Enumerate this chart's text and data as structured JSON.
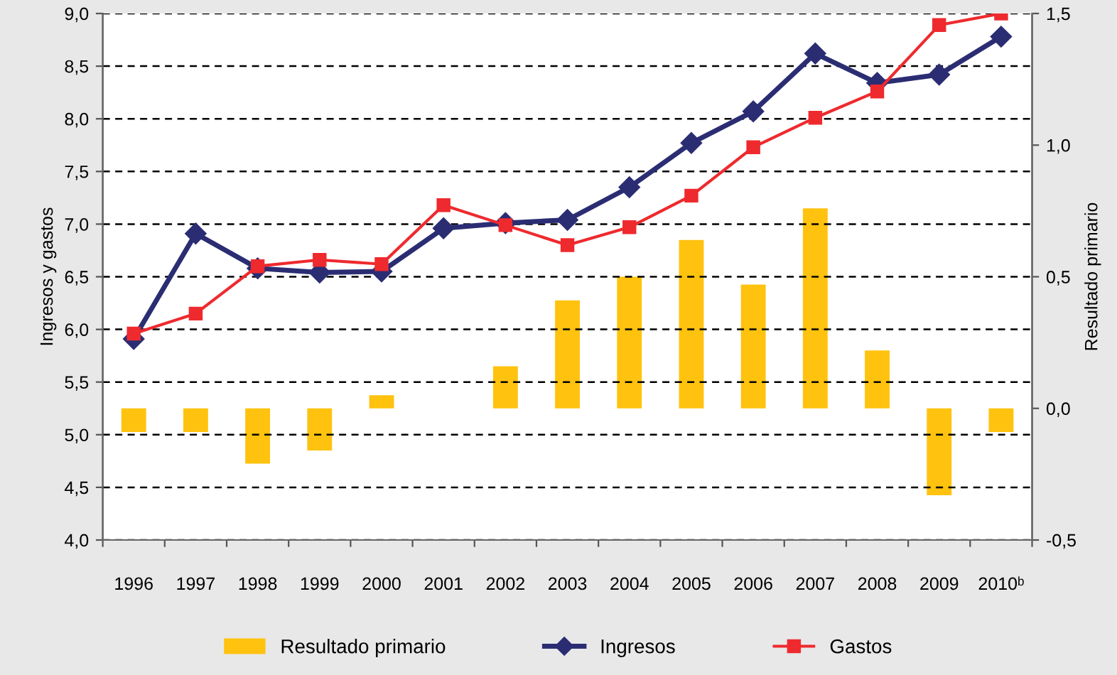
{
  "chart_data": {
    "type": "line",
    "ylabel": "Ingresos y gastos",
    "y2label": "Resultado primario",
    "categories": [
      "1996",
      "1997",
      "1998",
      "1999",
      "2000",
      "2001",
      "2002",
      "2003",
      "2004",
      "2005",
      "2006",
      "2007",
      "2008",
      "2009",
      "2010ᵇ"
    ],
    "series": [
      {
        "name": "Resultado primario",
        "type": "bar",
        "axis": "y2",
        "color": "#ffc20e",
        "values": [
          -0.09,
          -0.09,
          -0.21,
          -0.16,
          0.05,
          0,
          0.16,
          0.41,
          0.5,
          0.64,
          0.47,
          0.76,
          0.22,
          -0.33,
          -0.09
        ]
      },
      {
        "name": "Ingresos",
        "color": "#2b2d73",
        "marker": "diamond",
        "values": [
          5.91,
          6.91,
          6.58,
          6.54,
          6.55,
          6.96,
          7.01,
          7.04,
          7.35,
          7.77,
          8.07,
          8.62,
          8.34,
          8.42,
          8.78
        ]
      },
      {
        "name": "Gastos",
        "color": "#ee2a2e",
        "marker": "square",
        "values": [
          5.96,
          6.15,
          6.6,
          6.66,
          6.62,
          7.18,
          6.99,
          6.8,
          6.97,
          7.27,
          7.73,
          8.01,
          8.26,
          8.89,
          9.0
        ]
      }
    ],
    "ylim": [
      4,
      9
    ],
    "yticks": [
      {
        "value": 4,
        "label": "4,0"
      },
      {
        "value": 4.5,
        "label": "4,5"
      },
      {
        "value": 5,
        "label": "5,0"
      },
      {
        "value": 5.5,
        "label": "5,5"
      },
      {
        "value": 6,
        "label": "6,0"
      },
      {
        "value": 6.5,
        "label": "6,5"
      },
      {
        "value": 7,
        "label": "7,0"
      },
      {
        "value": 7.5,
        "label": "7,5"
      },
      {
        "value": 8,
        "label": "8,0"
      },
      {
        "value": 8.5,
        "label": "8,5"
      },
      {
        "value": 9,
        "label": "9,0"
      }
    ],
    "y2lim": [
      -0.5,
      1.5
    ],
    "y2ticks": [
      {
        "value": -0.5,
        "label": "-0,5"
      },
      {
        "value": 0,
        "label": "0,0"
      },
      {
        "value": 0.5,
        "label": "0,5"
      },
      {
        "value": 1,
        "label": "1,0"
      },
      {
        "value": 1.5,
        "label": "1,5"
      }
    ],
    "grid": "y",
    "legend": "bottom"
  }
}
